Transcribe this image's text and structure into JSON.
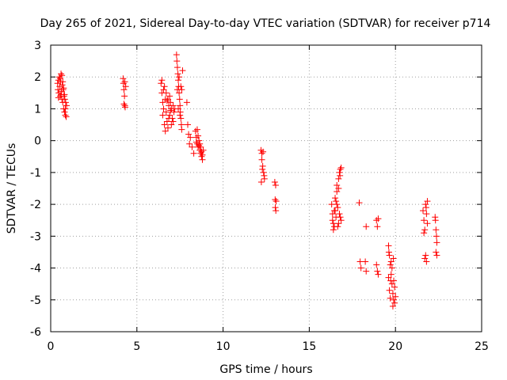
{
  "chart_data": {
    "type": "scatter",
    "title": "Day 265 of 2021, Sidereal Day-to-day VTEC variation (SDTVAR) for receiver p714",
    "xlabel": "GPS time / hours",
    "ylabel": "SDTVAR / TECUs",
    "xlim": [
      0,
      25
    ],
    "ylim": [
      -6,
      3
    ],
    "xticks": [
      0,
      5,
      10,
      15,
      20,
      25
    ],
    "yticks": [
      -6,
      -5,
      -4,
      -3,
      -2,
      -1,
      0,
      1,
      2,
      3
    ],
    "xtick_labels": [
      "0",
      "5",
      "10",
      "15",
      "20",
      "25"
    ],
    "ytick_labels": [
      "-6",
      "-5",
      "-4",
      "-3",
      "-2",
      "-1",
      "0",
      "1",
      "2",
      "3"
    ],
    "grid": true,
    "marker": "+",
    "color": "#ff0000",
    "series": [
      {
        "name": "SDTVAR",
        "points": [
          [
            0.4,
            1.8
          ],
          [
            0.42,
            1.6
          ],
          [
            0.45,
            1.9
          ],
          [
            0.47,
            1.5
          ],
          [
            0.5,
            2.0
          ],
          [
            0.52,
            1.7
          ],
          [
            0.55,
            1.4
          ],
          [
            0.57,
            1.85
          ],
          [
            0.6,
            2.1
          ],
          [
            0.62,
            1.55
          ],
          [
            0.65,
            1.3
          ],
          [
            0.67,
            1.75
          ],
          [
            0.7,
            1.2
          ],
          [
            0.72,
            1.6
          ],
          [
            0.75,
            1.0
          ],
          [
            0.77,
            1.4
          ],
          [
            0.8,
            0.9
          ],
          [
            0.82,
            1.3
          ],
          [
            0.85,
            0.8
          ],
          [
            0.87,
            1.2
          ],
          [
            0.9,
            0.75
          ],
          [
            0.92,
            1.1
          ],
          [
            0.55,
            1.95
          ],
          [
            0.6,
            1.45
          ],
          [
            0.7,
            1.85
          ],
          [
            0.8,
            1.45
          ],
          [
            0.85,
            1.0
          ],
          [
            0.45,
            1.35
          ],
          [
            0.65,
            2.05
          ],
          [
            0.75,
            1.65
          ],
          [
            4.2,
            1.95
          ],
          [
            4.22,
            1.8
          ],
          [
            4.25,
            1.6
          ],
          [
            4.28,
            1.4
          ],
          [
            4.3,
            1.1
          ],
          [
            4.32,
            1.05
          ],
          [
            4.35,
            1.7
          ],
          [
            4.25,
            1.15
          ],
          [
            4.3,
            1.85
          ],
          [
            6.4,
            1.8
          ],
          [
            6.45,
            1.5
          ],
          [
            6.5,
            1.2
          ],
          [
            6.55,
            1.0
          ],
          [
            6.6,
            1.7
          ],
          [
            6.65,
            1.3
          ],
          [
            6.7,
            0.9
          ],
          [
            6.75,
            0.6
          ],
          [
            6.8,
            0.4
          ],
          [
            6.85,
            1.1
          ],
          [
            6.9,
            0.8
          ],
          [
            6.95,
            1.2
          ],
          [
            7.0,
            1.0
          ],
          [
            7.05,
            0.7
          ],
          [
            7.1,
            1.1
          ],
          [
            7.15,
            0.9
          ],
          [
            7.2,
            1.0
          ],
          [
            6.5,
            0.8
          ],
          [
            6.6,
            0.5
          ],
          [
            6.7,
            1.5
          ],
          [
            6.8,
            1.3
          ],
          [
            6.9,
            1.4
          ],
          [
            7.0,
            0.5
          ],
          [
            6.45,
            1.9
          ],
          [
            6.55,
            1.6
          ],
          [
            6.65,
            0.3
          ],
          [
            6.75,
            1.25
          ],
          [
            6.85,
            0.7
          ],
          [
            6.95,
            0.95
          ],
          [
            7.1,
            0.6
          ],
          [
            7.3,
            2.7
          ],
          [
            7.32,
            2.5
          ],
          [
            7.35,
            2.3
          ],
          [
            7.38,
            2.1
          ],
          [
            7.4,
            1.9
          ],
          [
            7.42,
            1.7
          ],
          [
            7.45,
            1.5
          ],
          [
            7.48,
            1.3
          ],
          [
            7.5,
            1.1
          ],
          [
            7.52,
            0.9
          ],
          [
            7.55,
            0.7
          ],
          [
            7.58,
            0.5
          ],
          [
            7.6,
            0.35
          ],
          [
            7.35,
            1.6
          ],
          [
            7.45,
            2.0
          ],
          [
            7.55,
            1.7
          ],
          [
            7.4,
            1.0
          ],
          [
            7.5,
            0.8
          ],
          [
            7.6,
            1.6
          ],
          [
            7.65,
            2.2
          ],
          [
            7.9,
            1.2
          ],
          [
            7.95,
            0.5
          ],
          [
            8.0,
            0.2
          ],
          [
            8.05,
            -0.1
          ],
          [
            8.1,
            0.1
          ],
          [
            8.2,
            -0.2
          ],
          [
            8.3,
            -0.4
          ],
          [
            8.4,
            0.3
          ],
          [
            8.45,
            0.1
          ],
          [
            8.5,
            -0.1
          ],
          [
            8.55,
            -0.2
          ],
          [
            8.6,
            0.0
          ],
          [
            8.65,
            -0.3
          ],
          [
            8.7,
            -0.4
          ],
          [
            8.75,
            -0.5
          ],
          [
            8.8,
            -0.6
          ],
          [
            8.85,
            -0.3
          ],
          [
            8.5,
            0.35
          ],
          [
            8.6,
            -0.15
          ],
          [
            8.7,
            -0.2
          ],
          [
            8.8,
            -0.45
          ],
          [
            8.45,
            -0.05
          ],
          [
            8.55,
            0.15
          ],
          [
            8.65,
            -0.1
          ],
          [
            8.75,
            -0.35
          ],
          [
            12.2,
            -0.3
          ],
          [
            12.25,
            -0.4
          ],
          [
            12.3,
            -0.8
          ],
          [
            12.35,
            -1.0
          ],
          [
            12.4,
            -1.2
          ],
          [
            12.22,
            -1.3
          ],
          [
            12.28,
            -0.9
          ],
          [
            12.32,
            -0.35
          ],
          [
            12.38,
            -1.1
          ],
          [
            12.25,
            -0.6
          ],
          [
            13.0,
            -1.3
          ],
          [
            13.05,
            -1.4
          ],
          [
            13.02,
            -1.85
          ],
          [
            13.08,
            -1.9
          ],
          [
            13.03,
            -2.1
          ],
          [
            13.06,
            -2.2
          ],
          [
            16.3,
            -2.0
          ],
          [
            16.35,
            -2.5
          ],
          [
            16.4,
            -2.8
          ],
          [
            16.45,
            -2.2
          ],
          [
            16.5,
            -1.8
          ],
          [
            16.55,
            -2.4
          ],
          [
            16.6,
            -1.6
          ],
          [
            16.65,
            -2.1
          ],
          [
            16.7,
            -1.2
          ],
          [
            16.75,
            -2.3
          ],
          [
            16.8,
            -0.9
          ],
          [
            16.85,
            -2.5
          ],
          [
            16.4,
            -2.6
          ],
          [
            16.5,
            -2.2
          ],
          [
            16.6,
            -2.0
          ],
          [
            16.7,
            -1.5
          ],
          [
            16.8,
            -2.4
          ],
          [
            16.55,
            -1.9
          ],
          [
            16.65,
            -2.7
          ],
          [
            16.75,
            -1.0
          ],
          [
            16.35,
            -2.3
          ],
          [
            16.45,
            -2.7
          ],
          [
            16.6,
            -1.4
          ],
          [
            16.7,
            -2.6
          ],
          [
            16.78,
            -1.1
          ],
          [
            16.85,
            -0.85
          ],
          [
            17.9,
            -1.95
          ],
          [
            17.95,
            -3.8
          ],
          [
            18.0,
            -4.0
          ],
          [
            18.3,
            -2.7
          ],
          [
            18.25,
            -3.8
          ],
          [
            18.3,
            -4.1
          ],
          [
            18.9,
            -2.5
          ],
          [
            18.95,
            -2.7
          ],
          [
            18.9,
            -3.9
          ],
          [
            18.95,
            -4.1
          ],
          [
            19.0,
            -4.2
          ],
          [
            19.0,
            -2.45
          ],
          [
            19.6,
            -3.3
          ],
          [
            19.65,
            -3.6
          ],
          [
            19.7,
            -3.9
          ],
          [
            19.75,
            -4.2
          ],
          [
            19.8,
            -4.5
          ],
          [
            19.85,
            -4.8
          ],
          [
            19.9,
            -5.0
          ],
          [
            19.95,
            -5.1
          ],
          [
            20.0,
            -4.9
          ],
          [
            19.6,
            -4.3
          ],
          [
            19.65,
            -4.7
          ],
          [
            19.7,
            -4.95
          ],
          [
            19.75,
            -3.8
          ],
          [
            19.8,
            -4.0
          ],
          [
            19.85,
            -5.2
          ],
          [
            19.9,
            -4.4
          ],
          [
            19.95,
            -4.6
          ],
          [
            19.72,
            -4.4
          ],
          [
            19.88,
            -3.7
          ],
          [
            19.62,
            -3.5
          ],
          [
            21.6,
            -2.2
          ],
          [
            21.65,
            -2.5
          ],
          [
            21.7,
            -2.8
          ],
          [
            21.75,
            -2.0
          ],
          [
            21.8,
            -2.3
          ],
          [
            21.85,
            -1.9
          ],
          [
            21.7,
            -3.7
          ],
          [
            21.75,
            -3.6
          ],
          [
            21.8,
            -3.8
          ],
          [
            21.65,
            -2.9
          ],
          [
            21.85,
            -2.6
          ],
          [
            21.78,
            -2.1
          ],
          [
            22.3,
            -2.4
          ],
          [
            22.35,
            -2.8
          ],
          [
            22.4,
            -3.2
          ],
          [
            22.35,
            -3.5
          ],
          [
            22.4,
            -3.6
          ],
          [
            22.32,
            -2.5
          ],
          [
            22.38,
            -3.0
          ]
        ]
      }
    ]
  }
}
